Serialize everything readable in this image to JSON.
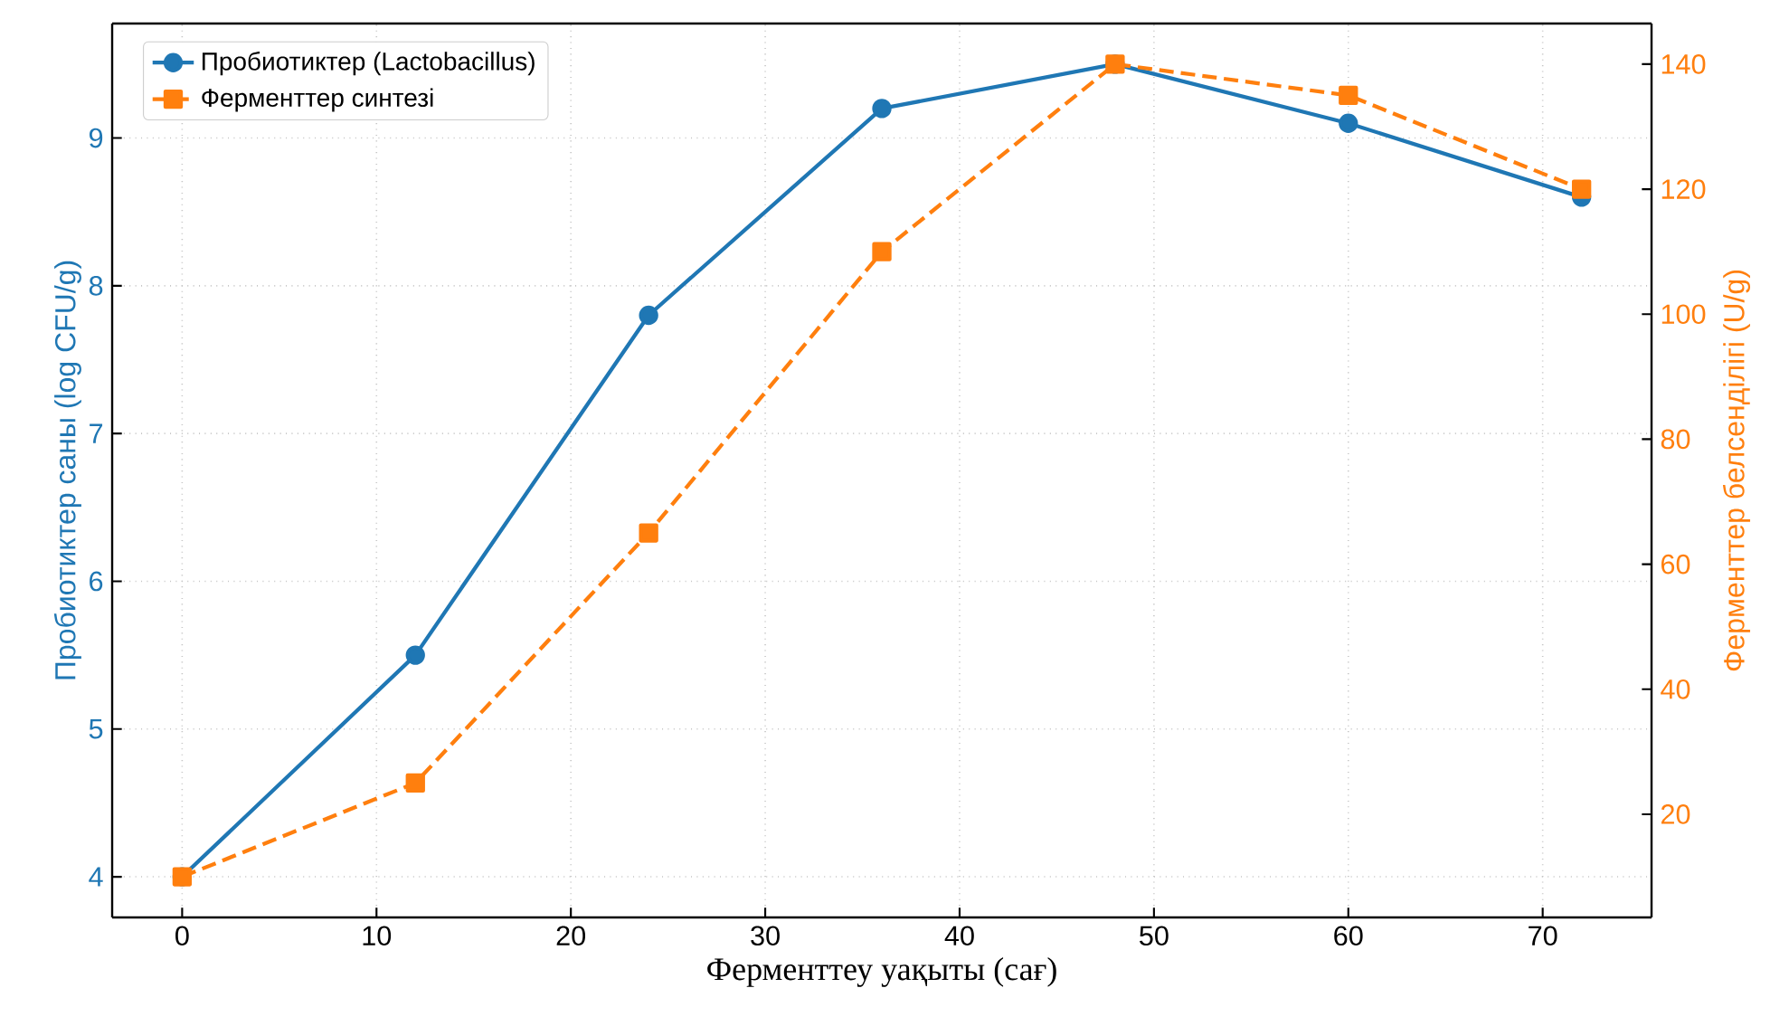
{
  "chart_data": {
    "type": "line",
    "xlabel": "Ферменттеу уақыты (сағ)",
    "ylabel": "Пробиотиктер саны (log CFU/g)",
    "y2label": "Ферменттер белсенділігі (U/g)",
    "x": [
      0,
      12,
      24,
      36,
      48,
      60,
      72
    ],
    "series": [
      {
        "name": "Пробиотиктер (Lactobacillus)",
        "color": "#1f77b4",
        "values": [
          4,
          5.5,
          7.8,
          9.2,
          9.5,
          9.1,
          8.6
        ],
        "marker": "circle",
        "line_style": "solid"
      },
      {
        "name": "Ферменттер синтезі",
        "color": "#ff7f0e",
        "values": [
          10,
          25,
          65,
          110,
          140,
          135,
          120
        ],
        "marker": "square",
        "line_style": "dashed",
        "axis": "y2"
      }
    ],
    "xlim": [
      -3.6,
      75.6
    ],
    "xticks": [
      0,
      10,
      20,
      30,
      40,
      50,
      60,
      70
    ],
    "ylim": [
      3.725,
      9.775
    ],
    "yticks": [
      4,
      5,
      6,
      7,
      8,
      9
    ],
    "y2lim": [
      3.5,
      146.5
    ],
    "y2ticks": [
      20,
      40,
      60,
      80,
      100,
      120,
      140
    ],
    "grid": true,
    "legend": "top left"
  }
}
